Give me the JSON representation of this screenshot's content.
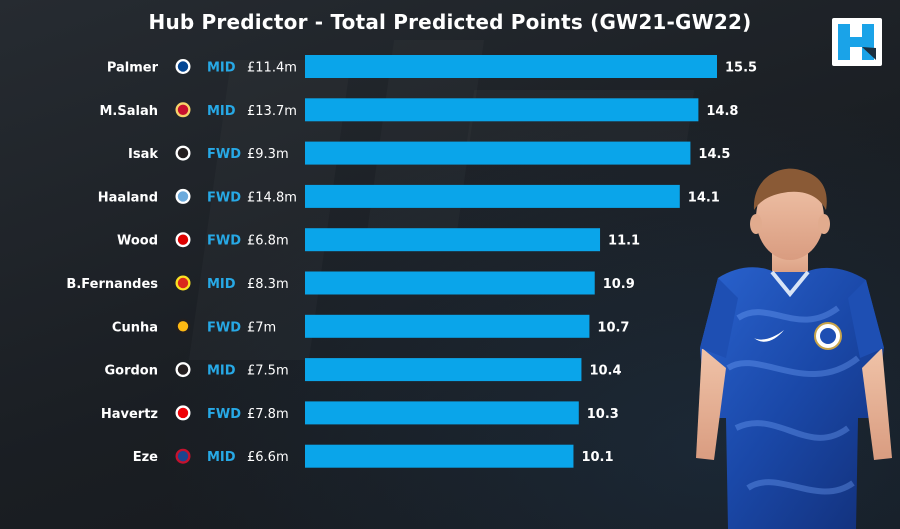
{
  "title": "Hub Predictor - Total Predicted Points (GW21-GW22)",
  "logo": {
    "icon": "fantasy-hub-logo",
    "color": "#1aa3e8"
  },
  "colors": {
    "bar": "#0aa5ea",
    "position": "#27a9e6",
    "text": "#ffffff",
    "background": "#1e2227"
  },
  "chart_data": {
    "type": "bar",
    "orientation": "horizontal",
    "title": "Hub Predictor - Total Predicted Points (GW21-GW22)",
    "xlim": [
      0,
      15.5
    ],
    "grid": false,
    "rows": [
      {
        "player": "Palmer",
        "club_badge": "chelsea-badge-icon",
        "position": "MID",
        "price": "£11.4m",
        "value": 15.5,
        "label": "15.5"
      },
      {
        "player": "M.Salah",
        "club_badge": "liverpool-badge-icon",
        "position": "MID",
        "price": "£13.7m",
        "value": 14.8,
        "label": "14.8"
      },
      {
        "player": "Isak",
        "club_badge": "newcastle-badge-icon",
        "position": "FWD",
        "price": "£9.3m",
        "value": 14.5,
        "label": "14.5"
      },
      {
        "player": "Haaland",
        "club_badge": "man-city-badge-icon",
        "position": "FWD",
        "price": "£14.8m",
        "value": 14.1,
        "label": "14.1"
      },
      {
        "player": "Wood",
        "club_badge": "nottingham-forest-badge-icon",
        "position": "FWD",
        "price": "£6.8m",
        "value": 11.1,
        "label": "11.1"
      },
      {
        "player": "B.Fernandes",
        "club_badge": "man-utd-badge-icon",
        "position": "MID",
        "price": "£8.3m",
        "value": 10.9,
        "label": "10.9"
      },
      {
        "player": "Cunha",
        "club_badge": "wolves-badge-icon",
        "position": "FWD",
        "price": "£7m",
        "value": 10.7,
        "label": "10.7"
      },
      {
        "player": "Gordon",
        "club_badge": "newcastle-badge-icon",
        "position": "MID",
        "price": "£7.5m",
        "value": 10.4,
        "label": "10.4"
      },
      {
        "player": "Havertz",
        "club_badge": "arsenal-badge-icon",
        "position": "FWD",
        "price": "£7.8m",
        "value": 10.3,
        "label": "10.3"
      },
      {
        "player": "Eze",
        "club_badge": "crystal-palace-badge-icon",
        "position": "MID",
        "price": "£6.6m",
        "value": 10.1,
        "label": "10.1"
      }
    ]
  },
  "illustration": {
    "icon": "player-in-chelsea-kit-photo",
    "kit_color": "#1e4fb3"
  }
}
